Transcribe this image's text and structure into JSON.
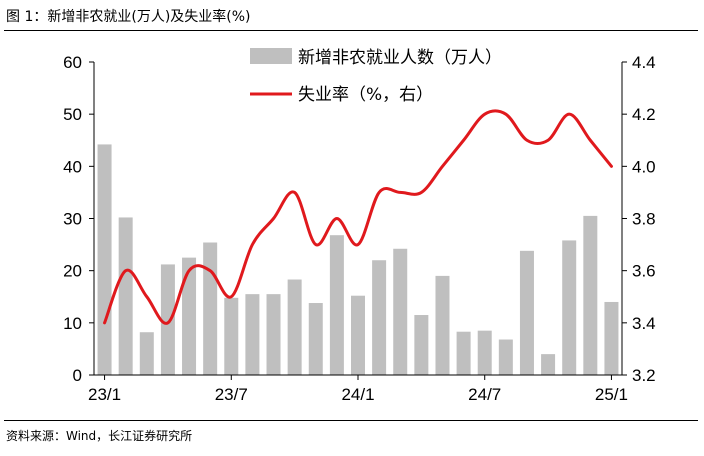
{
  "figure_title": "图 1：新增非农就业(万人)及失业率(%)",
  "source_note": "资料来源：Wind，长江证券研究所",
  "chart_data": {
    "type": "bar+line",
    "categories": [
      "23/1",
      "23/2",
      "23/3",
      "23/4",
      "23/5",
      "23/6",
      "23/7",
      "23/8",
      "23/9",
      "23/10",
      "23/11",
      "23/12",
      "24/1",
      "24/2",
      "24/3",
      "24/4",
      "24/5",
      "24/6",
      "24/7",
      "24/8",
      "24/9",
      "24/10",
      "24/11",
      "24/12",
      "25/1"
    ],
    "x_tick_labels": [
      "23/1",
      "23/7",
      "24/1",
      "24/7",
      "25/1"
    ],
    "x_tick_index": [
      0,
      6,
      12,
      18,
      24
    ],
    "left_axis": {
      "min": 0,
      "max": 60,
      "ticks": [
        0,
        10,
        20,
        30,
        40,
        50,
        60
      ]
    },
    "right_axis": {
      "min": 3.2,
      "max": 4.4,
      "ticks": [
        "3.2",
        "3.4",
        "3.6",
        "3.8",
        "4.0",
        "4.2",
        "4.4"
      ]
    },
    "series": [
      {
        "name": "新增非农就业人数（万人）",
        "type": "bar",
        "axis": "left",
        "color": "#bfbfbf",
        "values": [
          44.2,
          30.2,
          8.2,
          21.2,
          22.5,
          25.4,
          14.8,
          15.5,
          15.5,
          18.3,
          13.8,
          26.8,
          15.2,
          22.0,
          24.2,
          11.5,
          19.0,
          8.3,
          8.5,
          6.8,
          23.8,
          4.0,
          25.8,
          30.5,
          14.0
        ]
      },
      {
        "name": "失业率（%，右）",
        "type": "line",
        "axis": "right",
        "color": "#e0191d",
        "values": [
          3.4,
          3.6,
          3.5,
          3.4,
          3.6,
          3.6,
          3.5,
          3.7,
          3.8,
          3.9,
          3.7,
          3.8,
          3.7,
          3.9,
          3.9,
          3.9,
          4.0,
          4.1,
          4.2,
          4.2,
          4.1,
          4.1,
          4.2,
          4.1,
          4.0
        ]
      }
    ],
    "legend": {
      "position": "top-center"
    }
  }
}
